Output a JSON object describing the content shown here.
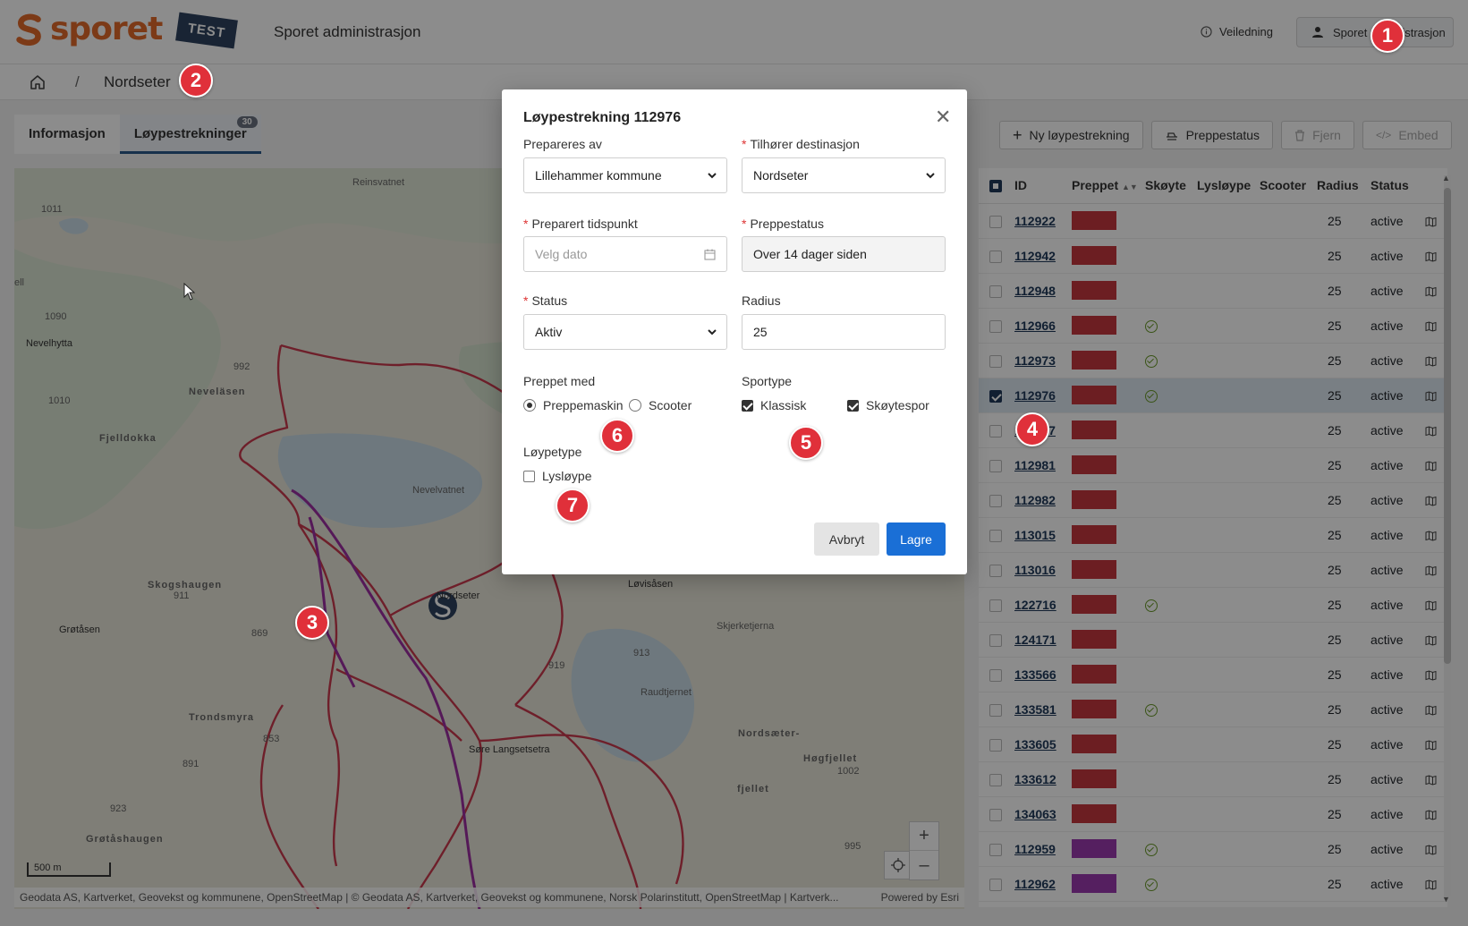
{
  "header": {
    "logo_text": "sporet",
    "badge": "TEST",
    "app_title": "Sporet administrasjon",
    "help_label": "Veiledning",
    "user_label": "Sporet administrasjon"
  },
  "breadcrumb": {
    "separator": "/",
    "current": "Nordseter"
  },
  "tabs": [
    {
      "label": "Informasjon",
      "active": false
    },
    {
      "label": "Løypestrekninger",
      "active": true,
      "count": "30"
    }
  ],
  "toolbar": {
    "new_label": "Ny løypestrekning",
    "status_label": "Preppestatus",
    "remove_label": "Fjern",
    "embed_label": "Embed"
  },
  "map": {
    "labels": [
      "Reinsvatnet",
      "1011",
      "ell",
      "1090",
      "Nevelhytta",
      "992",
      "Neveläsen",
      "1010",
      "Fjelldokka",
      "Nevelvatnet",
      "Nordseter",
      "Løvisåsen",
      "Skogshaugen",
      "911",
      "Grøtåsen",
      "869",
      "919",
      "913",
      "Skjerketjerna",
      "Raudtjernet",
      "Trondsmyra",
      "853",
      "891",
      "Søre Langsetsetra",
      "Nordsæter-",
      "Høgfjellet",
      "1002",
      "fjellet",
      "923",
      "Grøtåshaugen",
      "995"
    ],
    "scale": "500 m",
    "zoom_in": "+",
    "zoom_out": "–",
    "attribution": "Geodata AS, Kartverket, Geovekst og kommunene, OpenStreetMap | © Geodata AS, Kartverket, Geovekst og kommunene, Norsk Polarinstitutt, OpenStreetMap | Kartverk...",
    "powered_by": "Powered by Esri",
    "trail_colors": {
      "red": "#c93a4e",
      "purple": "#9b2fa0"
    }
  },
  "table": {
    "headers": [
      "ID",
      "Preppet",
      "Skøyte",
      "Lysløype",
      "Scooter",
      "Radius",
      "Status"
    ],
    "rows": [
      {
        "id": "112922",
        "color": "#c5383f",
        "skoyte": false,
        "radius": "25",
        "status": "active",
        "selected": false
      },
      {
        "id": "112942",
        "color": "#c5383f",
        "skoyte": false,
        "radius": "25",
        "status": "active",
        "selected": false
      },
      {
        "id": "112948",
        "color": "#c5383f",
        "skoyte": false,
        "radius": "25",
        "status": "active",
        "selected": false
      },
      {
        "id": "112966",
        "color": "#c5383f",
        "skoyte": true,
        "radius": "25",
        "status": "active",
        "selected": false
      },
      {
        "id": "112973",
        "color": "#c5383f",
        "skoyte": true,
        "radius": "25",
        "status": "active",
        "selected": false
      },
      {
        "id": "112976",
        "color": "#c5383f",
        "skoyte": true,
        "radius": "25",
        "status": "active",
        "selected": true
      },
      {
        "id": "112977",
        "color": "#c5383f",
        "skoyte": false,
        "radius": "25",
        "status": "active",
        "selected": false
      },
      {
        "id": "112981",
        "color": "#c5383f",
        "skoyte": false,
        "radius": "25",
        "status": "active",
        "selected": false
      },
      {
        "id": "112982",
        "color": "#c5383f",
        "skoyte": false,
        "radius": "25",
        "status": "active",
        "selected": false
      },
      {
        "id": "113015",
        "color": "#c5383f",
        "skoyte": false,
        "radius": "25",
        "status": "active",
        "selected": false
      },
      {
        "id": "113016",
        "color": "#c5383f",
        "skoyte": false,
        "radius": "25",
        "status": "active",
        "selected": false
      },
      {
        "id": "122716",
        "color": "#c5383f",
        "skoyte": true,
        "radius": "25",
        "status": "active",
        "selected": false
      },
      {
        "id": "124171",
        "color": "#c5383f",
        "skoyte": false,
        "radius": "25",
        "status": "active",
        "selected": false
      },
      {
        "id": "133566",
        "color": "#c5383f",
        "skoyte": false,
        "radius": "25",
        "status": "active",
        "selected": false
      },
      {
        "id": "133581",
        "color": "#c5383f",
        "skoyte": true,
        "radius": "25",
        "status": "active",
        "selected": false
      },
      {
        "id": "133605",
        "color": "#c5383f",
        "skoyte": false,
        "radius": "25",
        "status": "active",
        "selected": false
      },
      {
        "id": "133612",
        "color": "#c5383f",
        "skoyte": false,
        "radius": "25",
        "status": "active",
        "selected": false
      },
      {
        "id": "134063",
        "color": "#c5383f",
        "skoyte": false,
        "radius": "25",
        "status": "active",
        "selected": false
      },
      {
        "id": "112959",
        "color": "#9b3ab0",
        "skoyte": true,
        "radius": "25",
        "status": "active",
        "selected": false
      },
      {
        "id": "112962",
        "color": "#9b3ab0",
        "skoyte": true,
        "radius": "25",
        "status": "active",
        "selected": false
      }
    ]
  },
  "modal": {
    "title": "Løypestrekning 112976",
    "prepared_by_label": "Prepareres av",
    "prepared_by_value": "Lillehammer kommune",
    "destination_label": "Tilhører destinasjon",
    "destination_value": "Nordseter",
    "time_label": "Preparert tidspunkt",
    "time_placeholder": "Velg dato",
    "prep_status_label": "Preppestatus",
    "prep_status_value": "Over 14 dager siden",
    "status_label": "Status",
    "status_value": "Aktiv",
    "radius_label": "Radius",
    "radius_value": "25",
    "prepped_with_label": "Preppet med",
    "prepped_options": [
      {
        "label": "Preppemaskin",
        "checked": true
      },
      {
        "label": "Scooter",
        "checked": false
      }
    ],
    "sport_label": "Sportype",
    "sport_options": [
      {
        "label": "Klassisk",
        "checked": true
      },
      {
        "label": "Skøytespor",
        "checked": true
      }
    ],
    "trail_type_label": "Løypetype",
    "trail_type_option": {
      "label": "Lysløype",
      "checked": false
    },
    "cancel_label": "Avbryt",
    "save_label": "Lagre",
    "required_mark": "*"
  },
  "markers": [
    "1",
    "2",
    "3",
    "4",
    "5",
    "6",
    "7"
  ]
}
